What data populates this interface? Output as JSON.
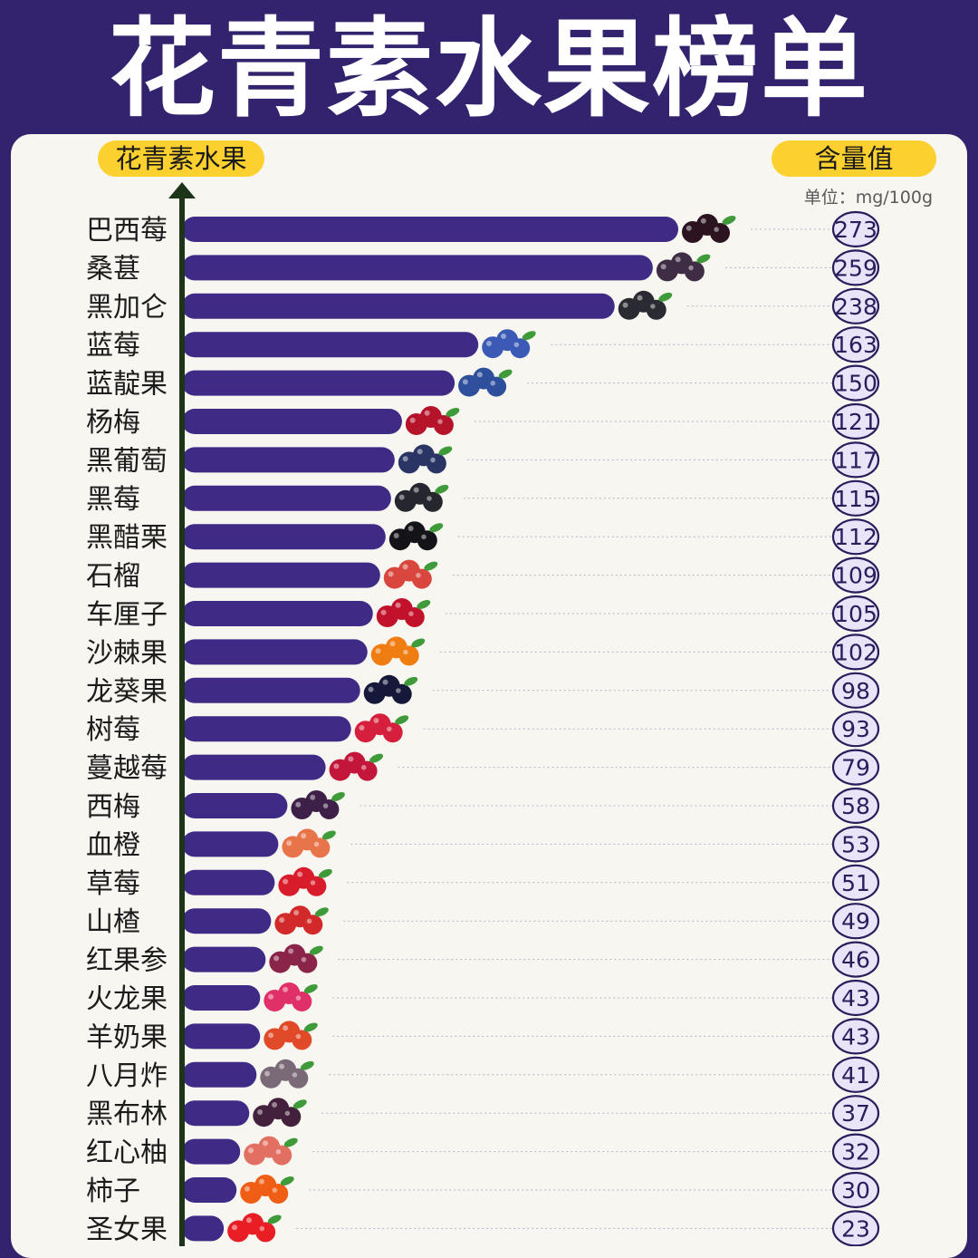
{
  "chart_data": {
    "type": "bar",
    "orientation": "horizontal",
    "title": "花青素水果榜单",
    "y_axis_label": "花青素水果",
    "value_label": "含量值",
    "unit": "单位：mg/100g",
    "categories": [
      "巴西莓",
      "桑葚",
      "黑加仑",
      "蓝莓",
      "蓝靛果",
      "杨梅",
      "黑葡萄",
      "黑莓",
      "黑醋栗",
      "石榴",
      "车厘子",
      "沙棘果",
      "龙葵果",
      "树莓",
      "蔓越莓",
      "西梅",
      "血橙",
      "草莓",
      "山楂",
      "红果参",
      "火龙果",
      "羊奶果",
      "八月炸",
      "黑布林",
      "红心柚",
      "柿子",
      "圣女果"
    ],
    "values": [
      273,
      259,
      238,
      163,
      150,
      121,
      117,
      115,
      112,
      109,
      105,
      102,
      98,
      93,
      79,
      58,
      53,
      51,
      49,
      46,
      43,
      43,
      41,
      37,
      32,
      30,
      23
    ],
    "icons": [
      "acai-berry-icon",
      "mulberry-icon",
      "blackcurrant-icon",
      "blueberry-icon",
      "honeysuckle-berry-icon",
      "bayberry-icon",
      "black-grape-icon",
      "blackberry-icon",
      "black-gooseberry-icon",
      "pomegranate-icon",
      "cherry-icon",
      "sea-buckthorn-icon",
      "nightshade-berry-icon",
      "raspberry-icon",
      "cranberry-icon",
      "prune-icon",
      "blood-orange-icon",
      "strawberry-icon",
      "hawthorn-icon",
      "red-ginseng-fruit-icon",
      "dragon-fruit-icon",
      "goumi-icon",
      "akebia-icon",
      "black-plum-icon",
      "red-grapefruit-icon",
      "persimmon-icon",
      "cherry-tomato-icon"
    ],
    "icon_colors": [
      "#2b1320",
      "#3f2c45",
      "#2a2a33",
      "#3a5ab5",
      "#2e4f9c",
      "#b5142a",
      "#2a3566",
      "#26262e",
      "#141418",
      "#d9463e",
      "#c2112a",
      "#ef7d11",
      "#16183a",
      "#d61f3c",
      "#c4153a",
      "#3e1f48",
      "#e8744a",
      "#d91c2c",
      "#d22a2a",
      "#8a2448",
      "#e0306a",
      "#e04a28",
      "#7a6a78",
      "#43213c",
      "#e27062",
      "#ef5e14",
      "#e81e24"
    ],
    "colors": {
      "bar": "#3f2a86",
      "background": "#33236e",
      "panel": "#f8f6f1",
      "pill": "#fcd02e",
      "axis": "#1e3418"
    }
  }
}
